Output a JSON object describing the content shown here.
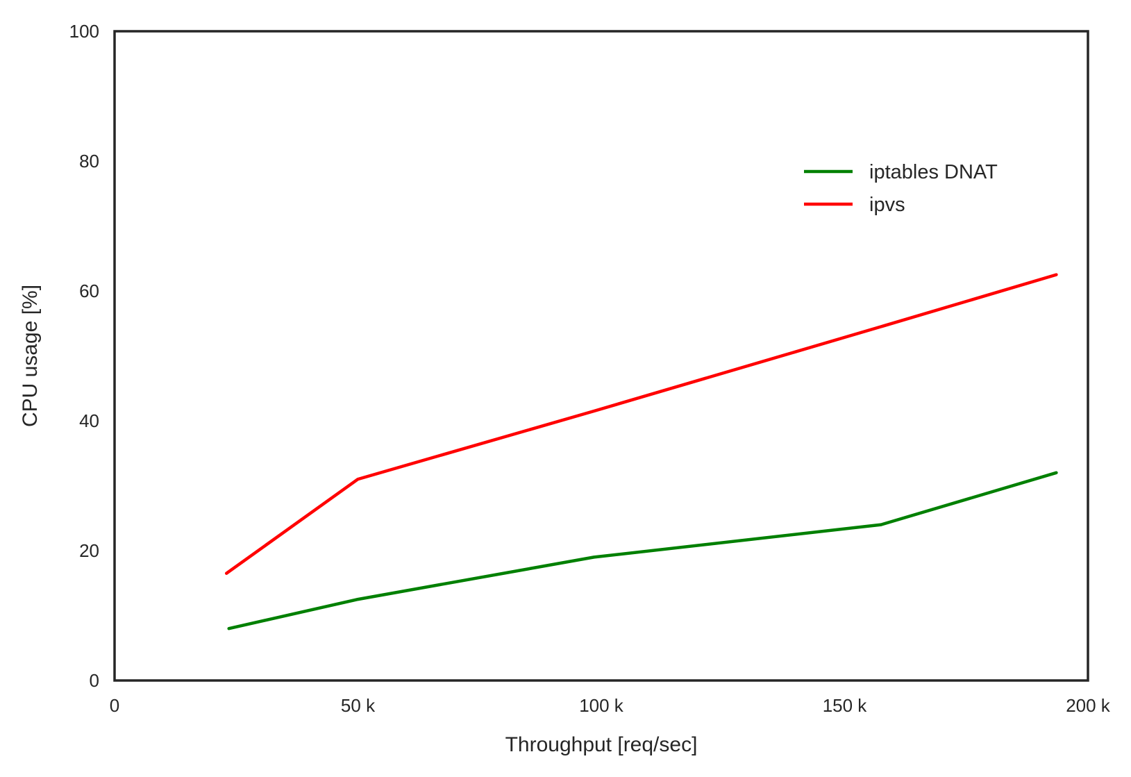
{
  "chart_data": {
    "type": "line",
    "title": "",
    "xlabel": "Throughput [req/sec]",
    "ylabel": "CPU usage [%]",
    "xlim": [
      0,
      200000
    ],
    "ylim": [
      0,
      100
    ],
    "grid": false,
    "legend_position": "upper-right",
    "x_ticks": [
      0,
      50000,
      100000,
      150000,
      200000
    ],
    "x_tick_labels": [
      "0",
      "50 k",
      "100 k",
      "150 k",
      "200 k"
    ],
    "y_ticks": [
      0,
      20,
      40,
      60,
      80,
      100
    ],
    "y_tick_labels": [
      "0",
      "20",
      "40",
      "60",
      "80",
      "100"
    ],
    "series": [
      {
        "name": "iptables DNAT",
        "color": "#008000",
        "x": [
          23500,
          50000,
          98500,
          157500,
          193500
        ],
        "y": [
          8.0,
          12.5,
          19.0,
          24.0,
          32.0
        ]
      },
      {
        "name": "ipvs",
        "color": "#ff0000",
        "x": [
          23000,
          50000,
          98500,
          157500,
          193500
        ],
        "y": [
          16.5,
          31.0,
          41.5,
          54.5,
          62.5
        ]
      }
    ]
  }
}
